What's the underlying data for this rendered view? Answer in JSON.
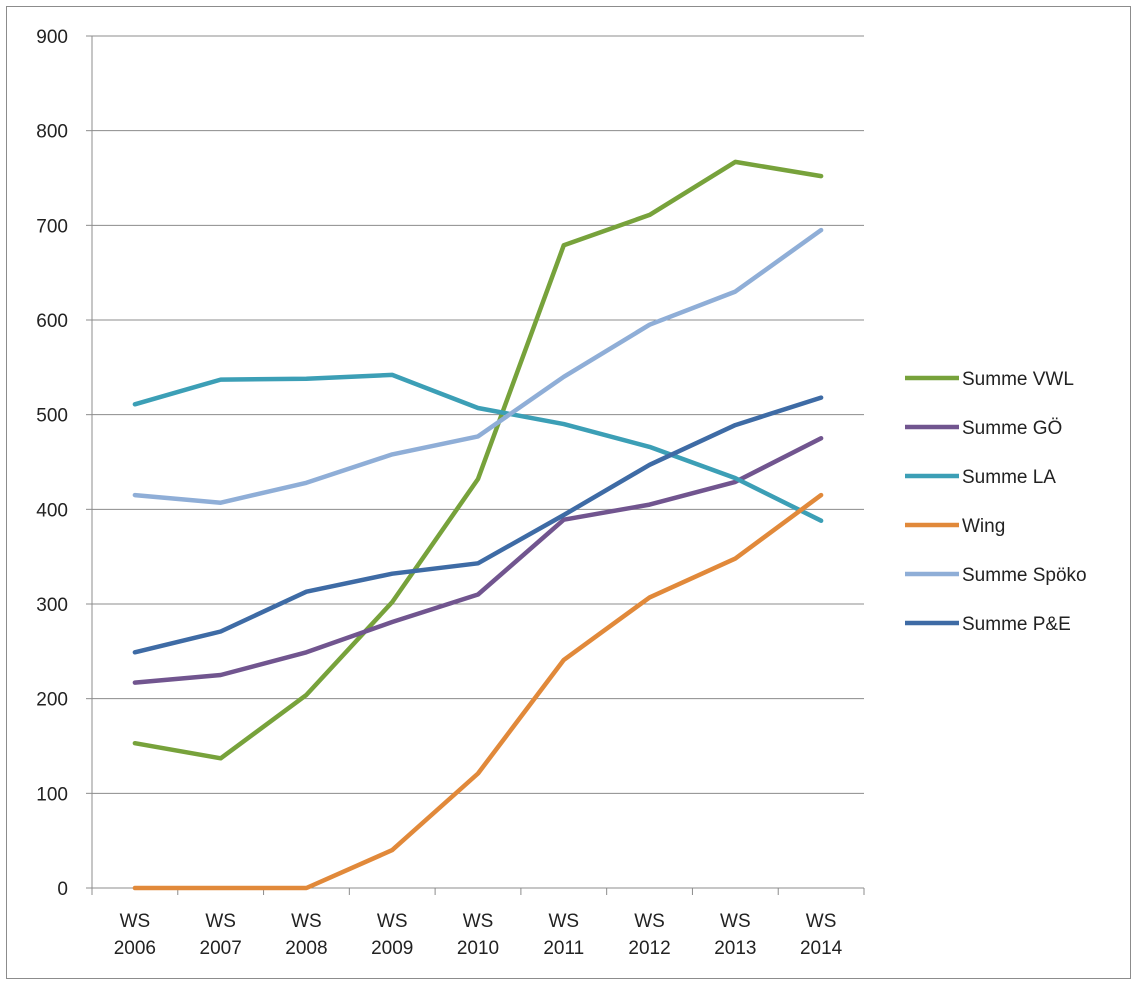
{
  "chart_data": {
    "type": "line",
    "categories": [
      [
        "WS",
        "2006"
      ],
      [
        "WS",
        "2007"
      ],
      [
        "WS",
        "2008"
      ],
      [
        "WS",
        "2009"
      ],
      [
        "WS",
        "2010"
      ],
      [
        "WS",
        "2011"
      ],
      [
        "WS",
        "2012"
      ],
      [
        "WS",
        "2013"
      ],
      [
        "WS",
        "2014"
      ]
    ],
    "y_ticks": [
      "0",
      "100",
      "200",
      "300",
      "400",
      "500",
      "600",
      "700",
      "800",
      "900"
    ],
    "ylim": [
      0,
      900
    ],
    "grid": true,
    "legend_position": "right",
    "series": [
      {
        "name": "Summe VWL",
        "color": "#77a23b",
        "values": [
          153,
          137,
          204,
          302,
          432,
          679,
          711,
          767,
          752
        ]
      },
      {
        "name": "Summe GÖ",
        "color": "#71558f",
        "values": [
          217,
          225,
          249,
          281,
          310,
          389,
          405,
          429,
          475
        ]
      },
      {
        "name": "Summe LA",
        "color": "#3c9fb6",
        "values": [
          511,
          537,
          538,
          542,
          507,
          490,
          466,
          433,
          388
        ]
      },
      {
        "name": "Wing",
        "color": "#e1893a",
        "values": [
          0,
          0,
          0,
          40,
          121,
          241,
          307,
          348,
          415
        ]
      },
      {
        "name": "Summe Spöko",
        "color": "#8faed7",
        "values": [
          415,
          407,
          428,
          458,
          477,
          540,
          595,
          630,
          695
        ]
      },
      {
        "name": "Summe P&E",
        "color": "#3e6ba5",
        "values": [
          249,
          271,
          313,
          332,
          343,
          394,
          447,
          489,
          518
        ]
      }
    ]
  }
}
